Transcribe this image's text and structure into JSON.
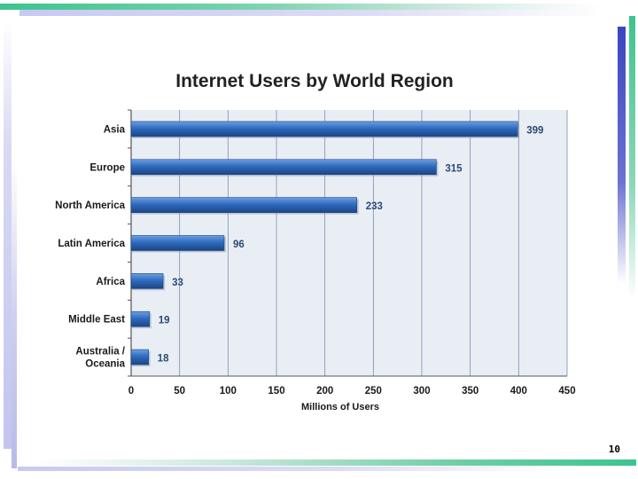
{
  "page_number": "10",
  "colors": {
    "bar": "#2f6bbf",
    "bar_light": "#6d9fe0",
    "bar_dark": "#1b4584",
    "plot_bg": "#e9eef5",
    "gridline": "#7a8fb0",
    "data_label": "#2b4a78"
  },
  "chart_data": {
    "type": "bar",
    "orientation": "horizontal",
    "title": "Internet Users by World Region",
    "xlabel": "Millions of Users",
    "ylabel": "",
    "categories": [
      "Asia",
      "Europe",
      "North America",
      "Latin America",
      "Africa",
      "Middle East",
      "Australia / Oceania"
    ],
    "values": [
      399,
      315,
      233,
      96,
      33,
      19,
      18
    ],
    "xlim": [
      0,
      450
    ],
    "xticks": [
      0,
      50,
      100,
      150,
      200,
      250,
      300,
      350,
      400,
      450
    ],
    "grid": true,
    "data_labels": true,
    "legend": "none"
  }
}
